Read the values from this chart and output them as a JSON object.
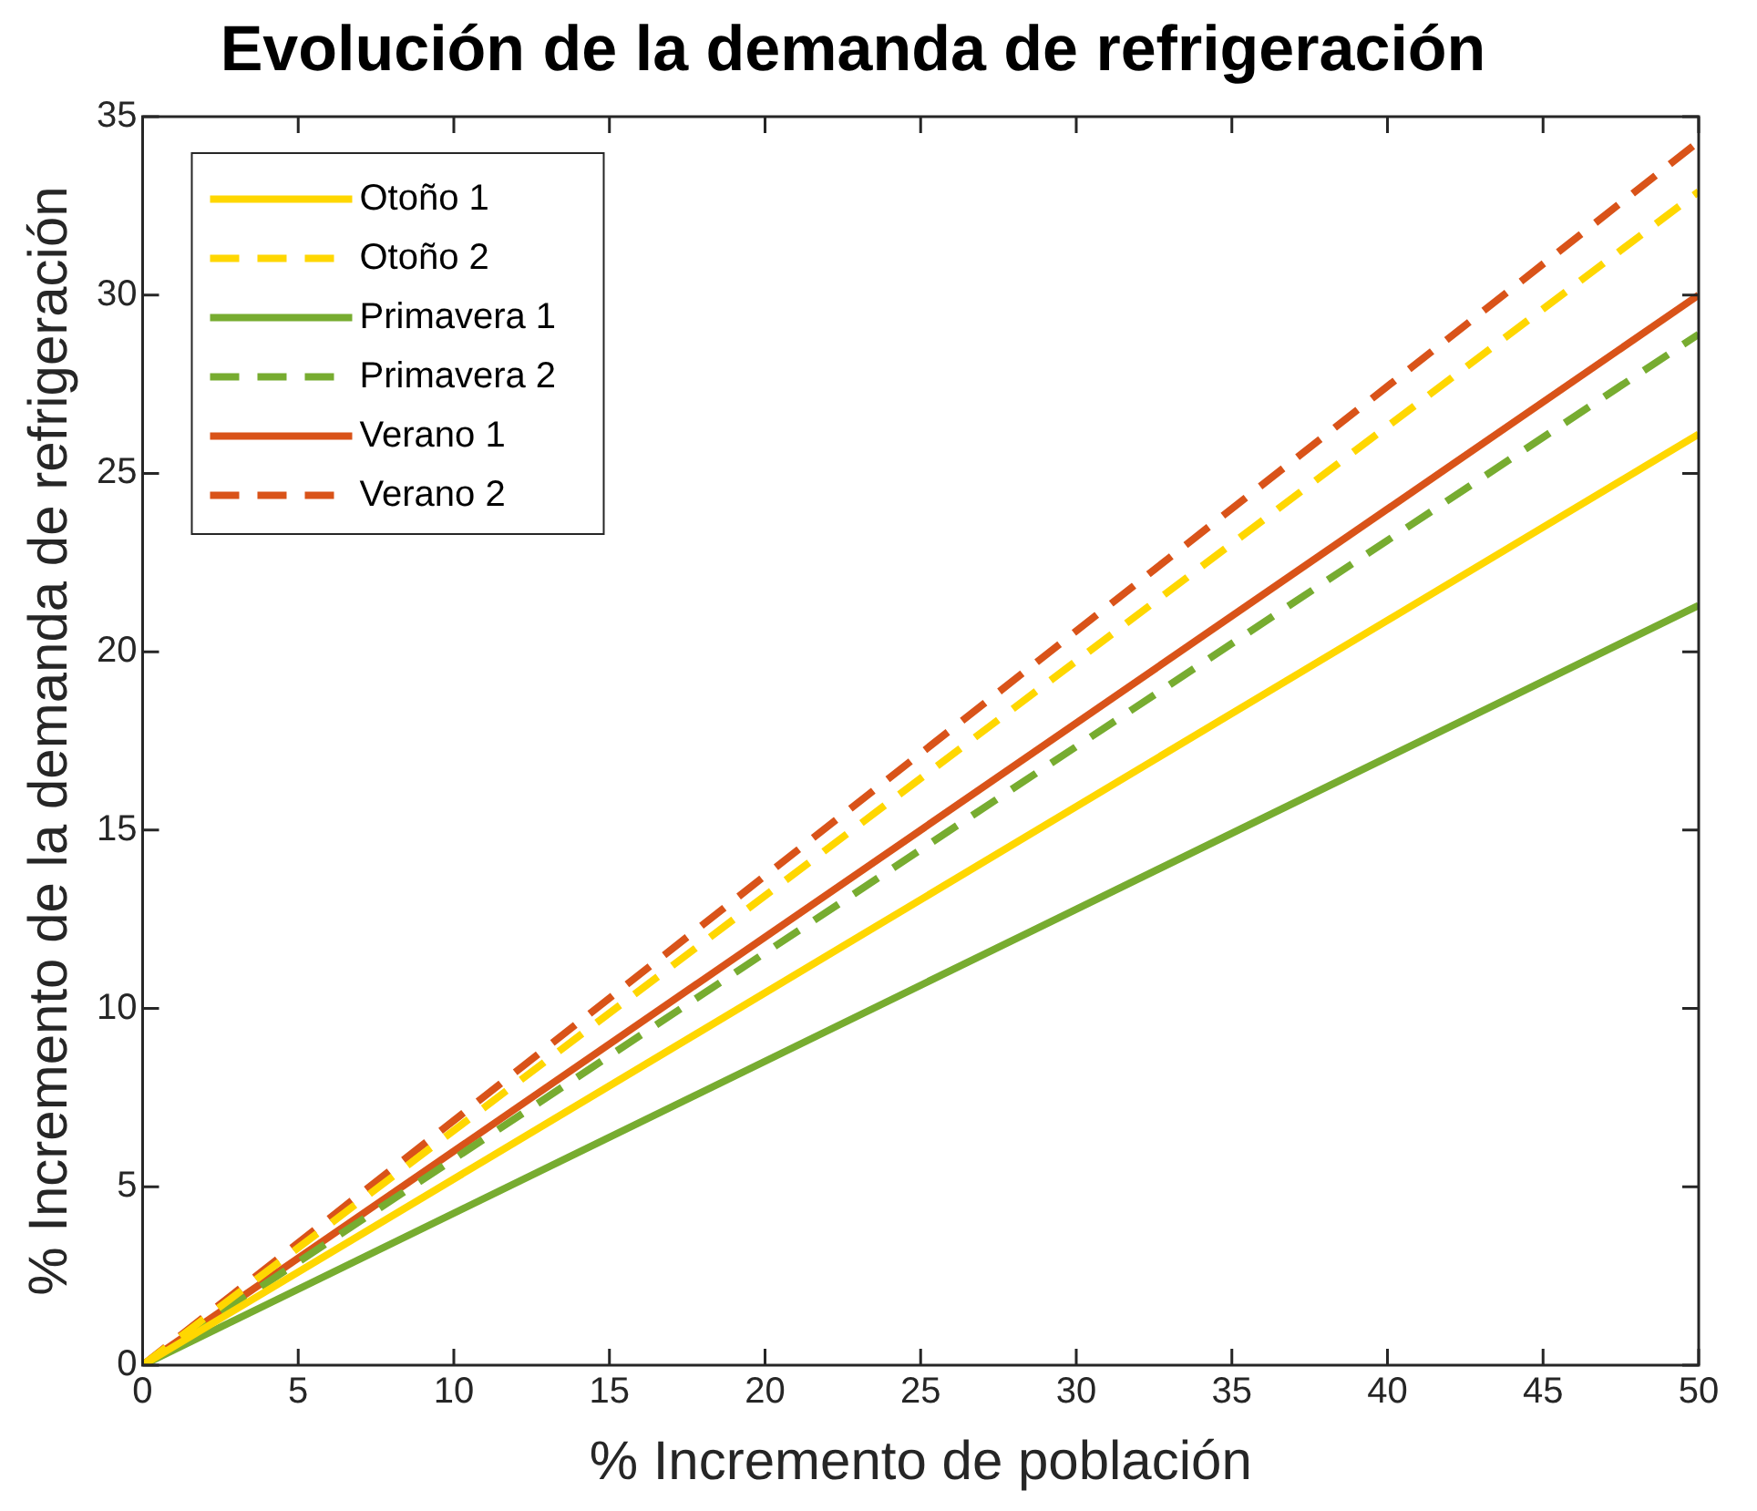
{
  "chart_data": {
    "type": "line",
    "title": "Evolución de la demanda de refrigeración",
    "xlabel": "% Incremento de población",
    "ylabel": "% Incremento de la demanda de refrigeración",
    "x": [
      0,
      50
    ],
    "series": [
      {
        "name": "Otoño 1",
        "color": "#ffd700",
        "line_style": "solid",
        "values": [
          0,
          26.1
        ]
      },
      {
        "name": "Otoño 2",
        "color": "#ffd700",
        "line_style": "dashed",
        "values": [
          0,
          32.9
        ]
      },
      {
        "name": "Primavera 1",
        "color": "#77ac30",
        "line_style": "solid",
        "values": [
          0,
          21.3
        ]
      },
      {
        "name": "Primavera 2",
        "color": "#77ac30",
        "line_style": "dashed",
        "values": [
          0,
          28.9
        ]
      },
      {
        "name": "Verano 1",
        "color": "#d95319",
        "line_style": "solid",
        "values": [
          0,
          30.0
        ]
      },
      {
        "name": "Verano 2",
        "color": "#d95319",
        "line_style": "dashed",
        "values": [
          0,
          34.3
        ]
      }
    ],
    "xlim": [
      0,
      50
    ],
    "xticks": [
      0,
      5,
      10,
      15,
      20,
      25,
      30,
      35,
      40,
      45,
      50
    ],
    "ylim": [
      0,
      35
    ],
    "yticks": [
      0,
      5,
      10,
      15,
      20,
      25,
      30,
      35
    ],
    "legend": "top left",
    "marker": "none",
    "grid": false
  }
}
